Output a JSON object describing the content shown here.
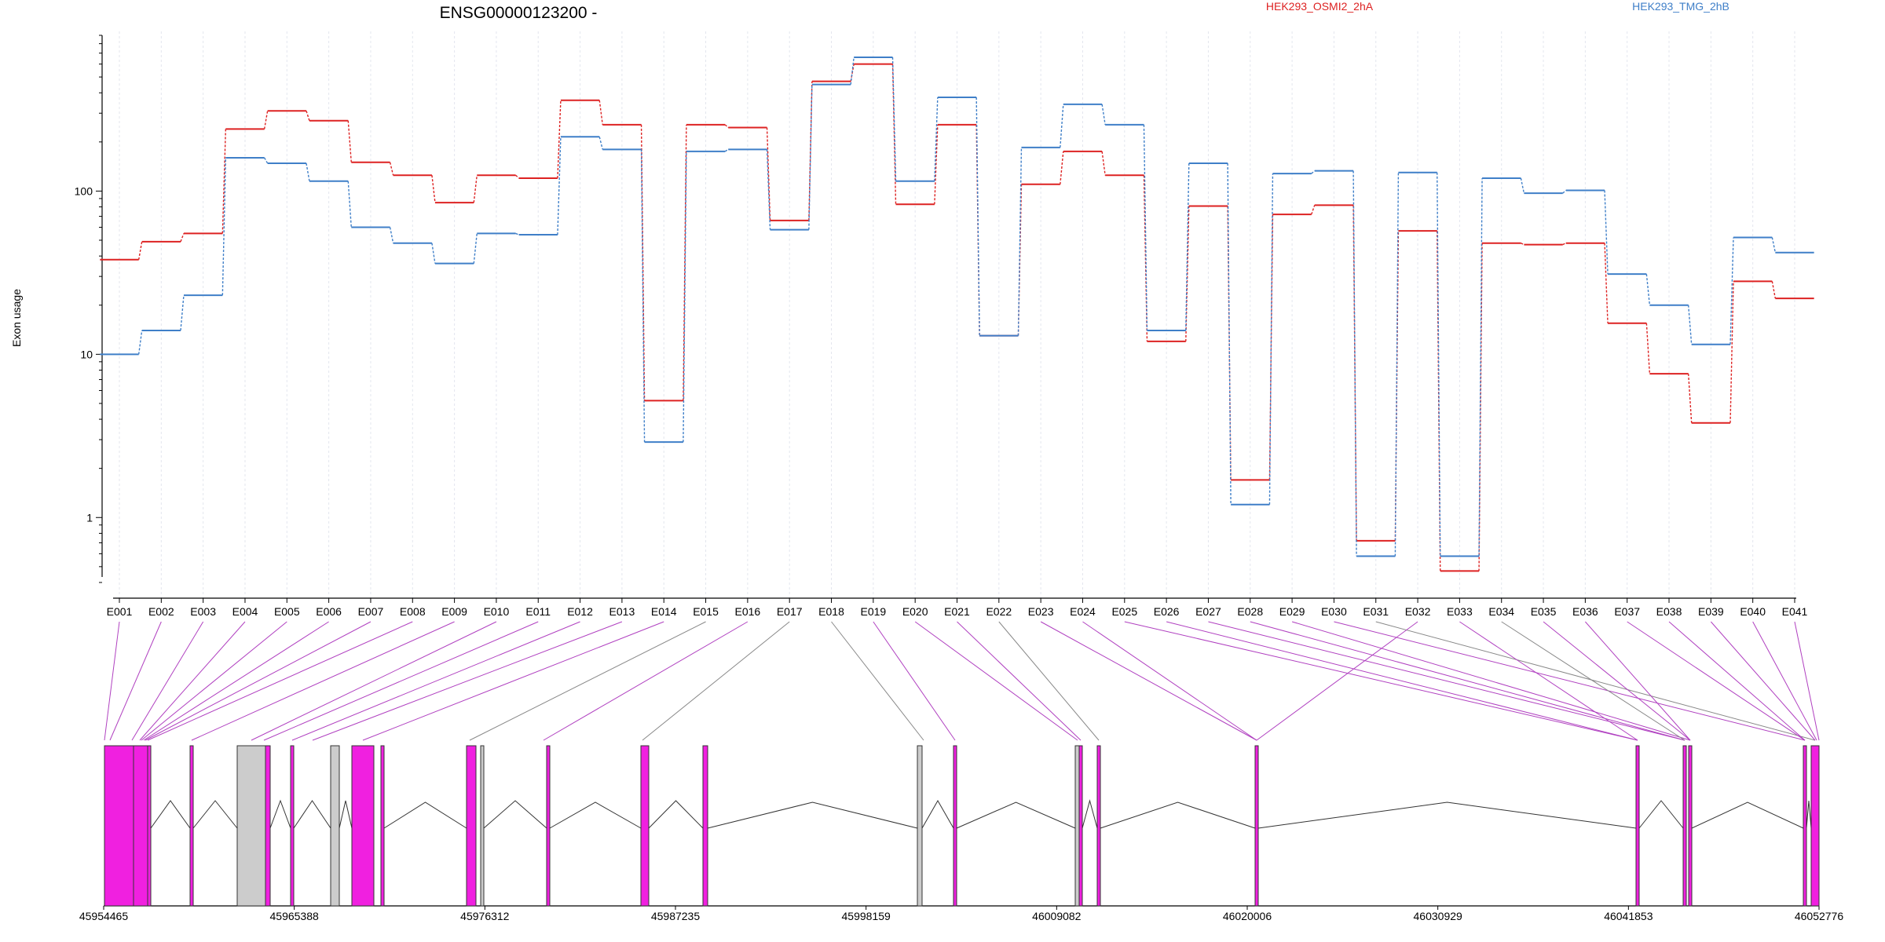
{
  "gene_title": "ENSG00000123200 -",
  "legend": {
    "series_a": "HEK293_OSMI2_2hA",
    "series_b": "HEK293_TMG_2hB"
  },
  "colors": {
    "series_a": "#dd2222",
    "series_b": "#3f7fc8",
    "exon_highlight": "#f020e0",
    "exon_plain": "#cccccc",
    "connector_highlight": "#b040c0",
    "connector_plain": "#888888"
  },
  "chart_data": {
    "type": "line",
    "ylabel": "Exon usage",
    "xlabel": "",
    "yscale": "log",
    "ylim": [
      0.4,
      900
    ],
    "yticks": [
      1,
      10,
      100
    ],
    "ytick_labels": [
      "1",
      "10",
      "100"
    ],
    "categories": [
      "E001",
      "E002",
      "E003",
      "E004",
      "E005",
      "E006",
      "E007",
      "E008",
      "E009",
      "E010",
      "E011",
      "E012",
      "E013",
      "E014",
      "E015",
      "E016",
      "E017",
      "E018",
      "E019",
      "E020",
      "E021",
      "E022",
      "E023",
      "E024",
      "E025",
      "E026",
      "E027",
      "E028",
      "E029",
      "E030",
      "E031",
      "E032",
      "E033",
      "E034",
      "E035",
      "E036",
      "E037",
      "E038",
      "E039",
      "E040",
      "E041"
    ],
    "series": [
      {
        "name": "HEK293_OSMI2_2hA",
        "values": [
          38,
          49,
          55,
          240,
          310,
          270,
          150,
          125,
          85,
          125,
          120,
          360,
          255,
          5.2,
          255,
          245,
          66,
          470,
          600,
          83,
          255,
          13,
          110,
          175,
          125,
          12,
          81,
          1.7,
          72,
          82,
          0.72,
          57,
          0.47,
          48,
          47,
          48,
          15.5,
          7.6,
          3.8,
          28,
          22
        ]
      },
      {
        "name": "HEK293_TMG_2hB",
        "values": [
          10,
          14,
          23,
          160,
          148,
          115,
          60,
          48,
          36,
          55,
          54,
          215,
          180,
          2.9,
          175,
          180,
          58,
          450,
          660,
          115,
          375,
          13,
          185,
          340,
          255,
          14,
          148,
          1.2,
          128,
          133,
          0.58,
          130,
          0.58,
          120,
          97,
          101,
          31,
          20,
          11.5,
          52,
          42
        ]
      }
    ],
    "gene_model": {
      "genomic_ticks": [
        "45954465",
        "45965388",
        "45976312",
        "45987235",
        "45998159",
        "46009082",
        "46020006",
        "46030929",
        "46041853",
        "46052776"
      ],
      "range": [
        45954465,
        46052776
      ]
    }
  }
}
